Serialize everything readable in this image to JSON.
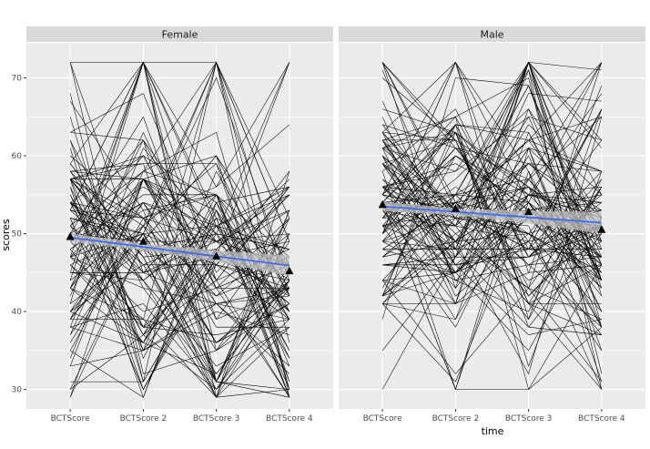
{
  "chart_data": {
    "type": "line",
    "xlabel": "time",
    "ylabel": "scores",
    "categories": [
      "BCTScore",
      "BCTScore 2",
      "BCTScore 3",
      "BCTScore 4"
    ],
    "ylim": [
      27.5,
      74.5
    ],
    "y_ticks": [
      30,
      40,
      50,
      60,
      70
    ],
    "y_tick_labels": [
      "30",
      "40",
      "50",
      "60",
      "70"
    ],
    "grid": true,
    "facets": [
      {
        "label": "Female",
        "n_subjects": 110,
        "means": [
          49.6,
          49.0,
          47.1,
          45.2
        ],
        "trend": {
          "start": 49.5,
          "end": 45.9
        },
        "band_halfwidth": [
          0.55,
          0.45,
          0.75,
          1.3
        ]
      },
      {
        "label": "Male",
        "n_subjects": 120,
        "means": [
          53.7,
          53.2,
          52.8,
          50.5
        ],
        "trend": {
          "start": 53.5,
          "end": 51.4
        },
        "band_halfwidth": [
          0.6,
          0.45,
          0.8,
          1.4
        ]
      }
    ],
    "colors": {
      "panel_bg": "#ebebeb",
      "strip_bg": "#d9d9d9",
      "grid": "#ffffff",
      "lines": "#000000",
      "trend": "#3366ff",
      "band": "#bdbdbd"
    }
  }
}
